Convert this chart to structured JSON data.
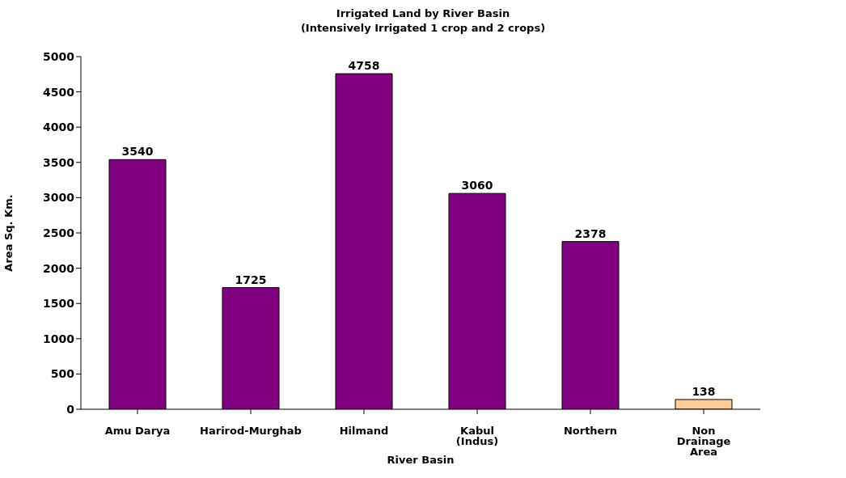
{
  "chart_data": {
    "type": "bar",
    "title": "Irrigated Land by River Basin",
    "subtitle": "(Intensively Irrigated 1 crop and 2 crops)",
    "xlabel": "River Basin",
    "ylabel": "Area Sq. Km.",
    "categories": [
      "Amu Darya",
      "Harirod-Murghab",
      "Hilmand",
      "Kabul (Indus)",
      "Northern",
      "Non Drainage Area"
    ],
    "values": [
      3540,
      1725,
      4758,
      3060,
      2378,
      138
    ],
    "colors": [
      "#800080",
      "#800080",
      "#800080",
      "#800080",
      "#800080",
      "#ffcc99"
    ],
    "ylim": [
      0,
      5000
    ],
    "yticks": [
      0,
      500,
      1000,
      1500,
      2000,
      2500,
      3000,
      3500,
      4000,
      4500,
      5000
    ],
    "grid": false,
    "legend": false,
    "data_labels": true
  }
}
